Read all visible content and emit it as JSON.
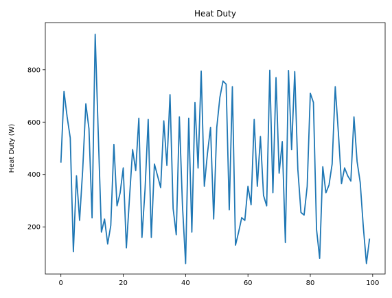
{
  "chart_data": {
    "type": "line",
    "title": "Heat Duty",
    "xlabel": "",
    "ylabel": "Heat Duty (W)",
    "xlim": [
      -5,
      104
    ],
    "ylim": [
      20,
      980
    ],
    "xticks": [
      0,
      20,
      40,
      60,
      80,
      100
    ],
    "yticks": [
      200,
      400,
      600,
      800
    ],
    "grid": false,
    "series": [
      {
        "color": "#1f77b4",
        "x": [
          0,
          1,
          2,
          3,
          4,
          5,
          6,
          7,
          8,
          9,
          10,
          11,
          12,
          13,
          14,
          15,
          16,
          17,
          18,
          19,
          20,
          21,
          22,
          23,
          24,
          25,
          26,
          27,
          28,
          29,
          30,
          31,
          32,
          33,
          34,
          35,
          36,
          37,
          38,
          39,
          40,
          41,
          42,
          43,
          44,
          45,
          46,
          47,
          48,
          49,
          50,
          51,
          52,
          53,
          54,
          55,
          56,
          57,
          58,
          59,
          60,
          61,
          62,
          63,
          64,
          65,
          66,
          67,
          68,
          69,
          70,
          71,
          72,
          73,
          74,
          75,
          76,
          77,
          78,
          79,
          80,
          81,
          82,
          83,
          84,
          85,
          86,
          87,
          88,
          89,
          90,
          91,
          92,
          93,
          94,
          95,
          96,
          97,
          98,
          99
        ],
        "values": [
          445,
          717,
          620,
          540,
          105,
          395,
          225,
          420,
          670,
          575,
          235,
          935,
          550,
          180,
          230,
          135,
          205,
          515,
          280,
          330,
          425,
          120,
          310,
          495,
          415,
          615,
          160,
          345,
          610,
          160,
          440,
          395,
          350,
          605,
          435,
          705,
          270,
          170,
          620,
          280,
          60,
          615,
          180,
          675,
          425,
          795,
          355,
          480,
          580,
          230,
          580,
          695,
          757,
          745,
          265,
          735,
          130,
          180,
          235,
          225,
          355,
          285,
          610,
          355,
          545,
          320,
          280,
          798,
          330,
          770,
          405,
          525,
          140,
          797,
          495,
          793,
          420,
          255,
          245,
          355,
          710,
          675,
          190,
          80,
          430,
          330,
          360,
          440,
          735,
          560,
          365,
          425,
          395,
          375,
          620,
          450,
          370,
          200,
          60,
          155
        ]
      }
    ]
  }
}
